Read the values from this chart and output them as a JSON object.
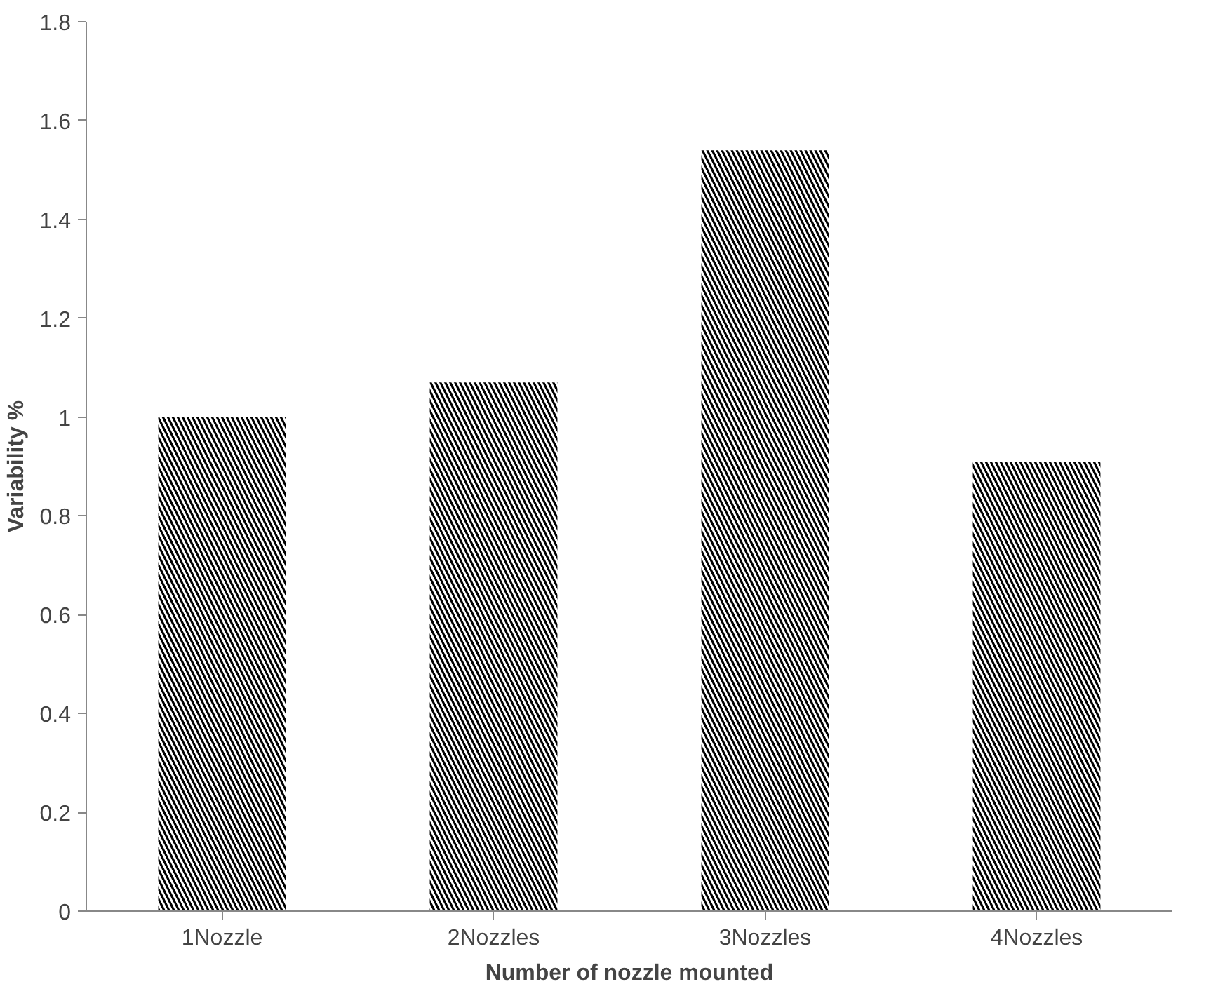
{
  "chart_data": {
    "type": "bar",
    "xlabel": "Number of nozzle mounted",
    "ylabel": "Variability %",
    "categories": [
      "1Nozzle",
      "2Nozzles",
      "3Nozzles",
      "4Nozzles"
    ],
    "values": [
      1.0,
      1.07,
      1.54,
      0.91
    ],
    "color": "#000000",
    "ylim": [
      0,
      1.8
    ],
    "yticks": [
      0,
      0.2,
      0.4,
      0.6,
      0.8,
      1,
      1.2,
      1.4,
      1.6,
      1.8
    ],
    "grid": false
  }
}
